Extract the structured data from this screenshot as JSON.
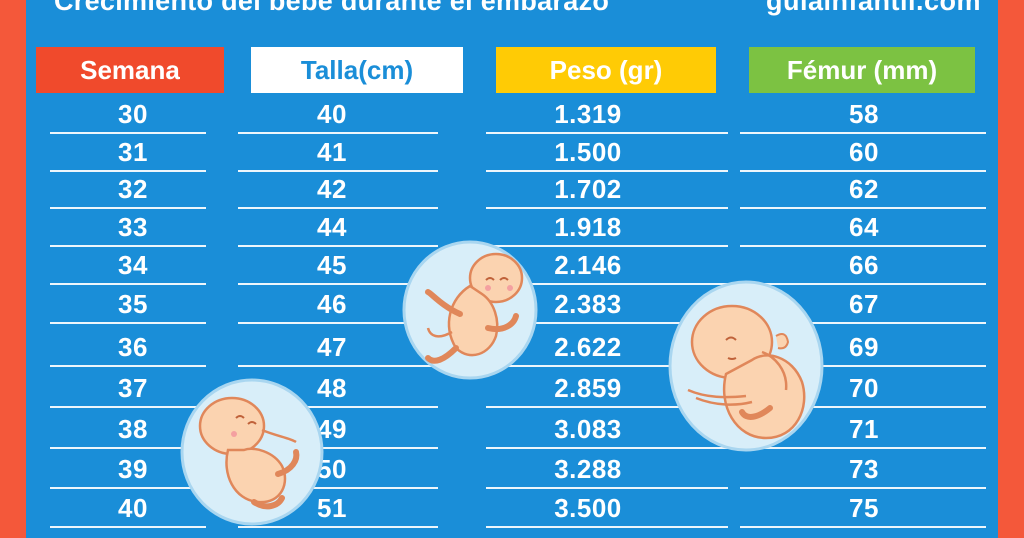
{
  "header": {
    "title": "Crecimiento del bebé durante el embarazo",
    "site": "guiainfantil.com"
  },
  "table": {
    "columns": [
      "Semana",
      "Talla(cm)",
      "Peso (gr)",
      "Fémur (mm)"
    ],
    "rows": [
      [
        "30",
        "40",
        "1.319",
        "58"
      ],
      [
        "31",
        "41",
        "1.500",
        "60"
      ],
      [
        "32",
        "42",
        "1.702",
        "62"
      ],
      [
        "33",
        "44",
        "1.918",
        "64"
      ],
      [
        "34",
        "45",
        "2.146",
        "66"
      ],
      [
        "35",
        "46",
        "2.383",
        "67"
      ],
      [
        "36",
        "47",
        "2.622",
        "69"
      ],
      [
        "37",
        "48",
        "2.859",
        "70"
      ],
      [
        "38",
        "49",
        "3.083",
        "71"
      ],
      [
        "39",
        "50",
        "3.288",
        "73"
      ],
      [
        "40",
        "51",
        "3.500",
        "75"
      ]
    ]
  },
  "colors": {
    "background_blue": "#1a8ed8",
    "frame_red": "#f4583a",
    "semana": "#f04a2c",
    "talla": "#ffffff",
    "peso": "#ffcb05",
    "femur": "#7cc242"
  }
}
